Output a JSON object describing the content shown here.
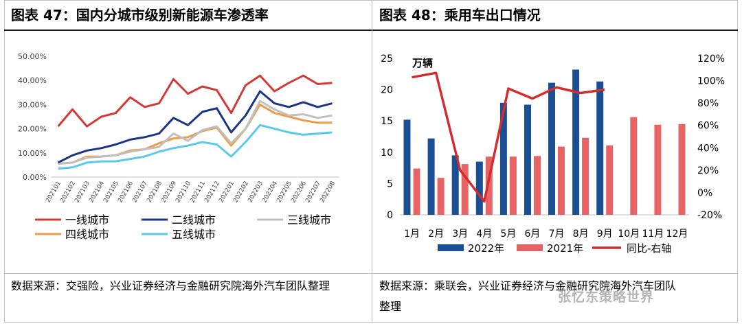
{
  "left": {
    "title": "图表 47：国内分城市级别新能源车渗透率",
    "source": "数据来源：交强险，兴业证券经济与金融研究院海外汽车团队整理",
    "chart_data": {
      "type": "line",
      "title": "国内分城市级别新能源车渗透率",
      "categories": [
        "202101",
        "202102",
        "202103",
        "202104",
        "202105",
        "202106",
        "202107",
        "202108",
        "202109",
        "202110",
        "202111",
        "202112",
        "202201",
        "202202",
        "202203",
        "202204",
        "202205",
        "202206",
        "202207",
        "202208"
      ],
      "ylim": [
        0,
        50
      ],
      "yticks": [
        "0.00%",
        "10.00%",
        "20.00%",
        "30.00%",
        "40.00%",
        "50.00%"
      ],
      "series": [
        {
          "name": "一线城市",
          "color": "#d33a36",
          "values": [
            21,
            28,
            21,
            25,
            26.5,
            33,
            29,
            30.5,
            40.5,
            34.5,
            37.5,
            36,
            26.5,
            38,
            42,
            35.5,
            39,
            42,
            38.5,
            39
          ]
        },
        {
          "name": "二线城市",
          "color": "#1b3584",
          "values": [
            6,
            9,
            11,
            12,
            13.5,
            15.5,
            16.5,
            18,
            24.5,
            21.5,
            27,
            28.5,
            18.5,
            25.5,
            35.5,
            30.5,
            29,
            31,
            29,
            30.5
          ]
        },
        {
          "name": "三线城市",
          "color": "#c0c0c0",
          "values": [
            5.5,
            6,
            8,
            8.5,
            9,
            10.5,
            11.5,
            12.5,
            18,
            15,
            19.5,
            21,
            14,
            20,
            31.5,
            28,
            25.5,
            26,
            24.5,
            25.5
          ]
        },
        {
          "name": "四线城市",
          "color": "#ee9b46",
          "values": [
            5.5,
            6,
            8.5,
            8.5,
            9,
            11,
            11.5,
            14,
            16,
            16.5,
            19,
            20.5,
            13,
            20,
            30,
            26.5,
            25,
            23.5,
            22.5,
            22.5
          ]
        },
        {
          "name": "五线城市",
          "color": "#5bc9ea",
          "values": [
            3.5,
            4,
            6,
            6.5,
            6.5,
            7.5,
            8.5,
            10.5,
            12,
            13,
            14.5,
            13.5,
            8.5,
            14.5,
            21.5,
            20,
            18.5,
            17.5,
            18,
            18.5
          ]
        }
      ]
    }
  },
  "right": {
    "title": "图表 48：乘用车出口情况",
    "source_line1": "数据来源：乘联会，兴业证券经济与金融研究院海外汽车团队",
    "source_line2": "整理",
    "watermark": "张忆东策略世界",
    "chart_data": {
      "type": "bar",
      "title": "乘用车出口情况",
      "unit_label": "万辆",
      "categories": [
        "1月",
        "2月",
        "3月",
        "4月",
        "5月",
        "6月",
        "7月",
        "8月",
        "9月",
        "10月",
        "11月",
        "12月"
      ],
      "ylim": [
        0,
        25
      ],
      "yticks": [
        "0",
        "5",
        "10",
        "15",
        "20",
        "25"
      ],
      "y2lim": [
        -20,
        120
      ],
      "y2ticks": [
        "-20%",
        "0%",
        "20%",
        "40%",
        "60%",
        "80%",
        "100%",
        "120%"
      ],
      "series": [
        {
          "name": "2022年",
          "color": "#1b4f94",
          "kind": "bar",
          "values": [
            15.2,
            12.2,
            9.5,
            8.5,
            17.9,
            17.6,
            21.1,
            23.2,
            21.3,
            null,
            null,
            null
          ]
        },
        {
          "name": "2021年",
          "color": "#e86464",
          "kind": "bar",
          "values": [
            7.4,
            5.9,
            8.1,
            9.3,
            9.3,
            9.4,
            10.9,
            12.3,
            11.1,
            15.6,
            14.4,
            14.5
          ]
        },
        {
          "name": "同比-右轴",
          "color": "#d42c2c",
          "kind": "line",
          "axis": "right",
          "values": [
            103,
            107,
            20,
            -8,
            93,
            84,
            94,
            89,
            92,
            null,
            null,
            null
          ]
        }
      ]
    }
  }
}
